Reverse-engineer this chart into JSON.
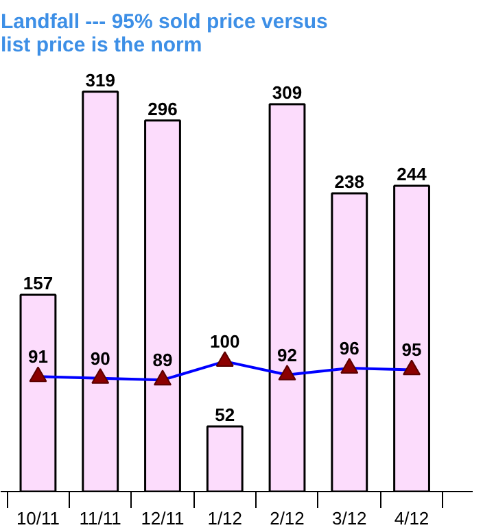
{
  "chart_data": {
    "type": "bar",
    "title": "Landfall --- 95% sold price versus list price is the norm",
    "categories": [
      "10/11",
      "11/11",
      "12/11",
      "1/12",
      "2/12",
      "3/12",
      "4/12"
    ],
    "series": [
      {
        "color": "#fcdcfc",
        "values": [
          157,
          319,
          296,
          52,
          309,
          238,
          244
        ]
      },
      {
        "type": "line",
        "axis": "y2",
        "color": "#0000ff",
        "marker": "triangle",
        "values": [
          91,
          90,
          89,
          100,
          92,
          96,
          95
        ]
      }
    ],
    "data_labels": true,
    "tick_labels": "x"
  }
}
